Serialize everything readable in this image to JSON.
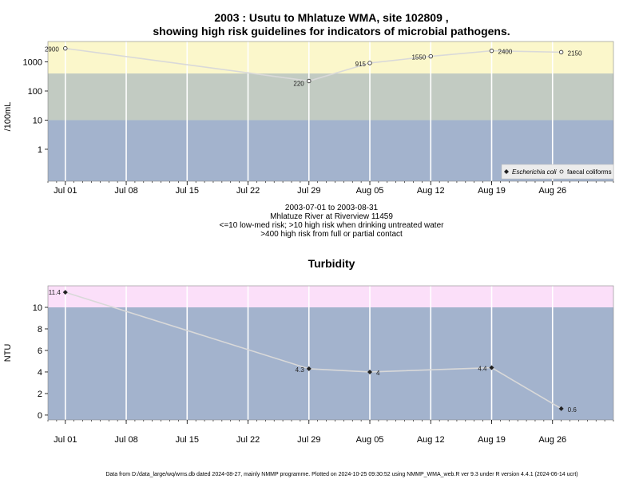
{
  "charts": {
    "micro": {
      "title_line1": "2003 : Usutu to Mhlatuze WMA, site 102809 ,",
      "title_line2": "showing high risk guidelines for indicators of microbial pathogens.",
      "ylabel": "/100mL",
      "caption": [
        "2003-07-01 to 2003-08-31",
        "Mhlatuze River at Riverview 11459",
        "<=10 low-med risk; >10 high risk when drinking untreated water",
        ">400 high risk from full or partial contact"
      ],
      "legend": {
        "ecoli": "Escherichia coli",
        "faecal": "faecal coliforms"
      }
    },
    "turb": {
      "title": "Turbidity",
      "ylabel": "NTU"
    }
  },
  "footer": "Data from D:/data_large/wq/wms.db dated 2024-08-27, mainly NMMP programme. Plotted on 2024-10-25 09:30:52 using NMMP_WMA_web.R ver 9.3 under R version 4.4.1 (2024-06-14 ucrt)",
  "colors": {
    "bands_micro": [
      "#a3b3cd",
      "#c2cbc2",
      "#fbf7cb"
    ],
    "bands_turb": [
      "#a3b3cd",
      "#fbdff9"
    ],
    "line": "#d9d9d9",
    "grid": "#ffffff"
  },
  "chart_data": [
    {
      "type": "line",
      "name": "microbial",
      "x_ticks": [
        "Jul 01",
        "Jul 08",
        "Jul 15",
        "Jul 22",
        "Jul 29",
        "Aug 05",
        "Aug 12",
        "Aug 19",
        "Aug 26"
      ],
      "x_tick_dates": [
        "2003-07-01",
        "2003-07-08",
        "2003-07-15",
        "2003-07-22",
        "2003-07-29",
        "2003-08-05",
        "2003-08-12",
        "2003-08-19",
        "2003-08-26"
      ],
      "x_range": [
        "2003-06-29",
        "2003-09-02"
      ],
      "y_scale": "log",
      "y_ticks": [
        "1",
        "10",
        "100",
        "1000"
      ],
      "y_range": [
        0.08,
        5000
      ],
      "bands": [
        10,
        400
      ],
      "series": [
        {
          "name": "faecal coliforms",
          "x": [
            "2003-07-01",
            "2003-07-29",
            "2003-08-05",
            "2003-08-12",
            "2003-08-19",
            "2003-08-27"
          ],
          "y": [
            2900,
            220,
            915,
            1550,
            2400,
            2150
          ],
          "labels": [
            "2900",
            "220",
            "915",
            "1550",
            "2400",
            "2150"
          ]
        }
      ]
    },
    {
      "type": "line",
      "name": "turbidity",
      "x_ticks": [
        "Jul 01",
        "Jul 08",
        "Jul 15",
        "Jul 22",
        "Jul 29",
        "Aug 05",
        "Aug 12",
        "Aug 19",
        "Aug 26"
      ],
      "x_tick_dates": [
        "2003-07-01",
        "2003-07-08",
        "2003-07-15",
        "2003-07-22",
        "2003-07-29",
        "2003-08-05",
        "2003-08-12",
        "2003-08-19",
        "2003-08-26"
      ],
      "x_range": [
        "2003-06-29",
        "2003-09-02"
      ],
      "y_ticks": [
        "0",
        "2",
        "4",
        "6",
        "8",
        "10"
      ],
      "y_range": [
        -0.45,
        12
      ],
      "bands": [
        10
      ],
      "series": [
        {
          "name": "Turbidity",
          "x": [
            "2003-07-01",
            "2003-07-29",
            "2003-08-05",
            "2003-08-19",
            "2003-08-27"
          ],
          "y": [
            11.4,
            4.3,
            4,
            4.4,
            0.6
          ],
          "labels": [
            "11.4",
            "4.3",
            "4",
            "4.4",
            "0.6"
          ]
        }
      ]
    }
  ]
}
